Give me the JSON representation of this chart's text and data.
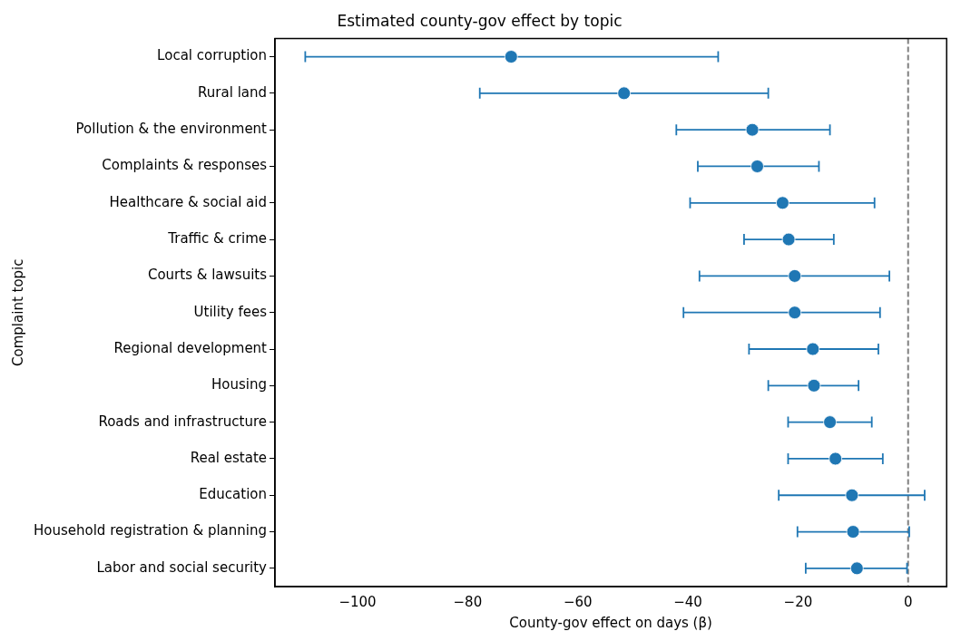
{
  "chart_data": {
    "type": "scatter",
    "orientation": "horizontal",
    "title": "Estimated county-gov effect by topic",
    "xlabel": "County-gov effect on days (β)",
    "ylabel": "Complaint topic",
    "categories": [
      "Local corruption",
      "Rural land",
      "Pollution & the environment",
      "Complaints & responses",
      "Healthcare & social aid",
      "Traffic & crime",
      "Courts & lawsuits",
      "Utility fees",
      "Regional development",
      "Housing",
      "Roads and infrastructure",
      "Real estate",
      "Education",
      "Household registration & planning",
      "Labor and social security"
    ],
    "series": [
      {
        "color": "#1f77b4",
        "values": [
          -72.1,
          -51.6,
          -28.3,
          -27.4,
          -22.8,
          -21.7,
          -20.6,
          -20.6,
          -17.3,
          -17.1,
          -14.2,
          -13.2,
          -10.2,
          -10.0,
          -9.3
        ],
        "errors": [
          [
            -109.5,
            -34.5
          ],
          [
            -77.8,
            -25.4
          ],
          [
            -42.1,
            -14.2
          ],
          [
            -38.2,
            -16.2
          ],
          [
            -39.6,
            -6.1
          ],
          [
            -29.8,
            -13.5
          ],
          [
            -37.9,
            -3.4
          ],
          [
            -40.8,
            -5.1
          ],
          [
            -28.9,
            -5.4
          ],
          [
            -25.4,
            -9.0
          ],
          [
            -21.8,
            -6.6
          ],
          [
            -21.8,
            -4.6
          ],
          [
            -23.5,
            3.0
          ],
          [
            -20.1,
            0.2
          ],
          [
            -18.6,
            -0.2
          ]
        ]
      }
    ],
    "xlim": [
      -115,
      7
    ],
    "xticks": [
      {
        "value": -100,
        "label": "−100"
      },
      {
        "value": -80,
        "label": "−80"
      },
      {
        "value": -60,
        "label": "−60"
      },
      {
        "value": -40,
        "label": "−40"
      },
      {
        "value": -20,
        "label": "−20"
      },
      0
    ],
    "ref_lines": [
      {
        "axis": "x",
        "value": 0,
        "color": "#808080",
        "line_style": "dashed"
      }
    ],
    "marker": "circle",
    "grid": false,
    "legend": false
  }
}
